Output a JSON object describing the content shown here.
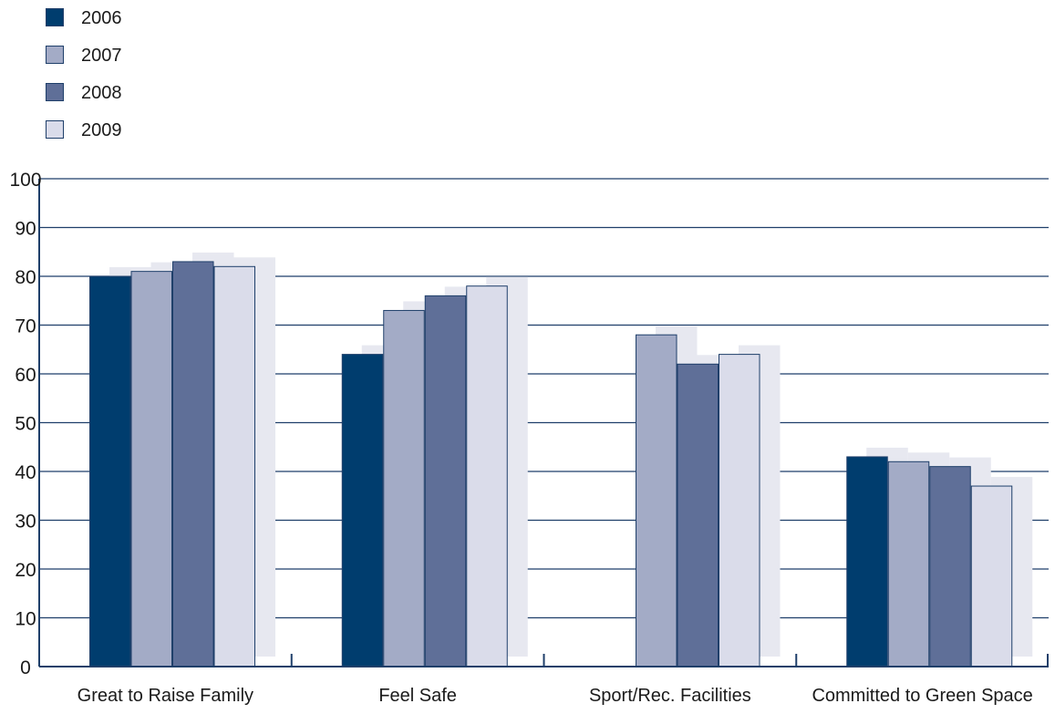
{
  "chart_data": {
    "type": "bar",
    "categories": [
      "Great to Raise Family",
      "Feel Safe",
      "Sport/Rec. Facilities",
      "Committed to Green Space"
    ],
    "series": [
      {
        "name": "2006",
        "values": [
          80,
          64,
          null,
          43
        ]
      },
      {
        "name": "2007",
        "values": [
          81,
          73,
          68,
          42
        ]
      },
      {
        "name": "2008",
        "values": [
          83,
          76,
          62,
          41
        ]
      },
      {
        "name": "2009",
        "values": [
          82,
          78,
          64,
          37
        ]
      }
    ],
    "y_ticks": [
      "0",
      "10",
      "20",
      "30",
      "40",
      "50",
      "60",
      "70",
      "80",
      "90",
      "100"
    ],
    "ylim": [
      0,
      100
    ],
    "grid": true,
    "legend_position": "top-left",
    "colors": {
      "series": [
        "#003d6e",
        "#a3abc6",
        "#5f6f98",
        "#dadcea"
      ],
      "bar_border": "#1f3f6a",
      "shadow": "#e7e8f0",
      "axis": "#1f3f6a",
      "grid": "#1f3f6a"
    }
  }
}
